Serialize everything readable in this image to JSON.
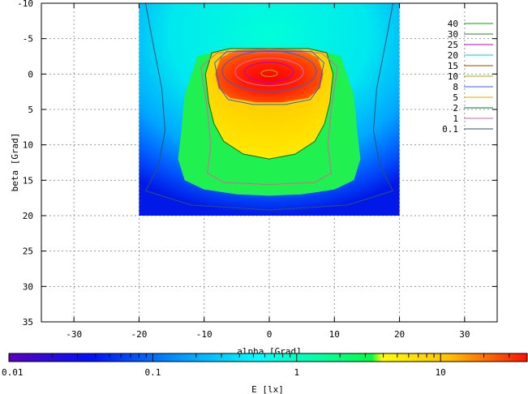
{
  "chart_data": {
    "type": "heatmap",
    "title": "",
    "xlabel": "alpha [Grad]",
    "ylabel": "beta [Grad]",
    "xlim": [
      -35,
      35
    ],
    "ylim": [
      -10,
      35
    ],
    "y_inverted": true,
    "x_ticks": [
      -30,
      -20,
      -10,
      0,
      10,
      20,
      30
    ],
    "y_ticks": [
      -10,
      -5,
      0,
      5,
      10,
      15,
      20,
      25,
      30,
      35
    ],
    "grid": true,
    "data_region": {
      "alpha": [
        -20,
        20
      ],
      "beta": [
        -10,
        20
      ]
    },
    "peak": {
      "alpha": 0,
      "beta": 0,
      "value": 40
    },
    "contour_legend": {
      "placement": "top-right",
      "entries": [
        {
          "label": "40",
          "color": "#0aa000"
        },
        {
          "label": "30",
          "color": "#2d7a3c"
        },
        {
          "label": "25",
          "color": "#c000c8"
        },
        {
          "label": "20",
          "color": "#00c8e0"
        },
        {
          "label": "15",
          "color": "#a04000"
        },
        {
          "label": "10",
          "color": "#b0a800"
        },
        {
          "label": "8",
          "color": "#3060e0"
        },
        {
          "label": "5",
          "color": "#e0b000"
        },
        {
          "label": "2",
          "color": "#007040"
        },
        {
          "label": "1",
          "color": "#e060a0"
        },
        {
          "label": "0.1",
          "color": "#305070"
        }
      ]
    },
    "colorbar": {
      "label": "E [lx]",
      "scale": "log",
      "range": [
        0.01,
        40
      ],
      "ticks": [
        {
          "value": 0.01,
          "label": "0.01"
        },
        {
          "value": 0.1,
          "label": "0.1"
        },
        {
          "value": 1,
          "label": "1"
        },
        {
          "value": 10,
          "label": "10"
        }
      ]
    }
  }
}
